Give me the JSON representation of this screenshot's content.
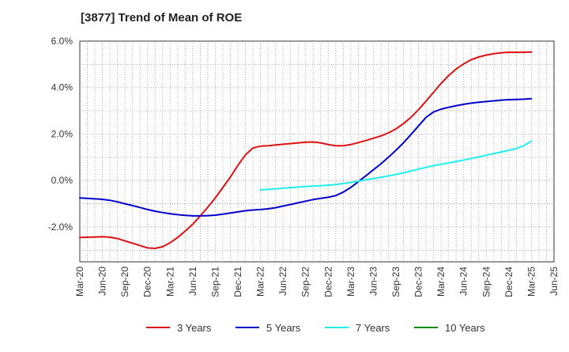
{
  "chart_data": {
    "type": "line",
    "title": "[3877]  Trend of Mean of ROE",
    "xlabel": "",
    "ylabel": "",
    "ylim": [
      -3.5,
      6.0
    ],
    "y_ticks": [
      6.0,
      4.0,
      2.0,
      0.0,
      -2.0
    ],
    "y_tick_labels": [
      "6.0%",
      "4.0%",
      "2.0%",
      "0.0%",
      "-2.0%"
    ],
    "x_tick_labels": [
      "Mar-20",
      "Jun-20",
      "Sep-20",
      "Dec-20",
      "Mar-21",
      "Jun-21",
      "Sep-21",
      "Dec-21",
      "Mar-22",
      "Jun-22",
      "Sep-22",
      "Dec-22",
      "Mar-23",
      "Jun-23",
      "Sep-23",
      "Dec-23",
      "Mar-24",
      "Jun-24",
      "Sep-24",
      "Dec-24",
      "Mar-25",
      "Jun-25"
    ],
    "grid": true,
    "legend_position": "bottom",
    "series": [
      {
        "name": "3 Years",
        "color": "#dd1111",
        "x": [
          "Mar-20",
          "Apr-20",
          "May-20",
          "Jun-20",
          "Jul-20",
          "Aug-20",
          "Sep-20",
          "Oct-20",
          "Nov-20",
          "Dec-20",
          "Jan-21",
          "Feb-21",
          "Mar-21",
          "Apr-21",
          "May-21",
          "Jun-21",
          "Jul-21",
          "Aug-21",
          "Sep-21",
          "Oct-21",
          "Nov-21",
          "Dec-21",
          "Jan-22",
          "Feb-22",
          "Mar-22",
          "Apr-22",
          "May-22",
          "Jun-22",
          "Jul-22",
          "Aug-22",
          "Sep-22",
          "Oct-22",
          "Nov-22",
          "Dec-22",
          "Jan-23",
          "Feb-23",
          "Mar-23",
          "Apr-23",
          "May-23",
          "Jun-23",
          "Jul-23",
          "Aug-23",
          "Sep-23",
          "Oct-23",
          "Nov-23",
          "Dec-23",
          "Jan-24",
          "Feb-24",
          "Mar-24",
          "Apr-24",
          "May-24",
          "Jun-24",
          "Jul-24",
          "Aug-24",
          "Sep-24",
          "Oct-24",
          "Nov-24",
          "Dec-24",
          "Jan-25",
          "Feb-25",
          "Mar-25"
        ],
        "values": [
          -2.45,
          -2.44,
          -2.43,
          -2.42,
          -2.44,
          -2.5,
          -2.6,
          -2.7,
          -2.8,
          -2.9,
          -2.92,
          -2.85,
          -2.68,
          -2.45,
          -2.18,
          -1.88,
          -1.52,
          -1.15,
          -0.75,
          -0.3,
          0.15,
          0.65,
          1.1,
          1.4,
          1.48,
          1.5,
          1.53,
          1.56,
          1.59,
          1.62,
          1.65,
          1.66,
          1.62,
          1.55,
          1.5,
          1.5,
          1.55,
          1.63,
          1.72,
          1.82,
          1.92,
          2.05,
          2.22,
          2.45,
          2.72,
          3.05,
          3.42,
          3.8,
          4.18,
          4.52,
          4.8,
          5.02,
          5.2,
          5.32,
          5.4,
          5.46,
          5.5,
          5.52,
          5.52,
          5.52,
          5.53
        ]
      },
      {
        "name": "5 Years",
        "color": "#0000cc",
        "x": [
          "Mar-20",
          "Apr-20",
          "May-20",
          "Jun-20",
          "Jul-20",
          "Aug-20",
          "Sep-20",
          "Oct-20",
          "Nov-20",
          "Dec-20",
          "Jan-21",
          "Feb-21",
          "Mar-21",
          "Apr-21",
          "May-21",
          "Jun-21",
          "Jul-21",
          "Aug-21",
          "Sep-21",
          "Oct-21",
          "Nov-21",
          "Dec-21",
          "Jan-22",
          "Feb-22",
          "Mar-22",
          "Apr-22",
          "May-22",
          "Jun-22",
          "Jul-22",
          "Aug-22",
          "Sep-22",
          "Oct-22",
          "Nov-22",
          "Dec-22",
          "Jan-23",
          "Feb-23",
          "Mar-23",
          "Apr-23",
          "May-23",
          "Jun-23",
          "Jul-23",
          "Aug-23",
          "Sep-23",
          "Oct-23",
          "Nov-23",
          "Dec-23",
          "Jan-24",
          "Feb-24",
          "Mar-24",
          "Apr-24",
          "May-24",
          "Jun-24",
          "Jul-24",
          "Aug-24",
          "Sep-24",
          "Oct-24",
          "Nov-24",
          "Dec-24",
          "Jan-25",
          "Feb-25",
          "Mar-25"
        ],
        "values": [
          -0.75,
          -0.77,
          -0.79,
          -0.81,
          -0.85,
          -0.92,
          -1.0,
          -1.08,
          -1.16,
          -1.25,
          -1.32,
          -1.38,
          -1.43,
          -1.47,
          -1.5,
          -1.52,
          -1.52,
          -1.51,
          -1.49,
          -1.45,
          -1.4,
          -1.35,
          -1.3,
          -1.27,
          -1.25,
          -1.22,
          -1.17,
          -1.1,
          -1.03,
          -0.96,
          -0.89,
          -0.82,
          -0.77,
          -0.72,
          -0.65,
          -0.5,
          -0.3,
          -0.05,
          0.2,
          0.46,
          0.72,
          1.0,
          1.3,
          1.62,
          1.98,
          2.35,
          2.72,
          2.95,
          3.07,
          3.15,
          3.22,
          3.28,
          3.33,
          3.37,
          3.4,
          3.43,
          3.46,
          3.48,
          3.49,
          3.5,
          3.52
        ]
      },
      {
        "name": "7 Years",
        "color": "#22eeee",
        "x": [
          "Mar-22",
          "Apr-22",
          "May-22",
          "Jun-22",
          "Jul-22",
          "Aug-22",
          "Sep-22",
          "Oct-22",
          "Nov-22",
          "Dec-22",
          "Jan-23",
          "Feb-23",
          "Mar-23",
          "Apr-23",
          "May-23",
          "Jun-23",
          "Jul-23",
          "Aug-23",
          "Sep-23",
          "Oct-23",
          "Nov-23",
          "Dec-23",
          "Jan-24",
          "Feb-24",
          "Mar-24",
          "Apr-24",
          "May-24",
          "Jun-24",
          "Jul-24",
          "Aug-24",
          "Sep-24",
          "Oct-24",
          "Nov-24",
          "Dec-24",
          "Jan-25",
          "Feb-25",
          "Mar-25"
        ],
        "values": [
          -0.4,
          -0.38,
          -0.36,
          -0.33,
          -0.31,
          -0.28,
          -0.26,
          -0.24,
          -0.22,
          -0.2,
          -0.17,
          -0.13,
          -0.08,
          -0.03,
          0.03,
          0.08,
          0.14,
          0.2,
          0.26,
          0.33,
          0.41,
          0.49,
          0.57,
          0.64,
          0.7,
          0.76,
          0.82,
          0.88,
          0.95,
          1.02,
          1.09,
          1.16,
          1.23,
          1.3,
          1.38,
          1.5,
          1.7
        ]
      },
      {
        "name": "10 Years",
        "color": "#118811",
        "x": [],
        "values": []
      }
    ]
  }
}
